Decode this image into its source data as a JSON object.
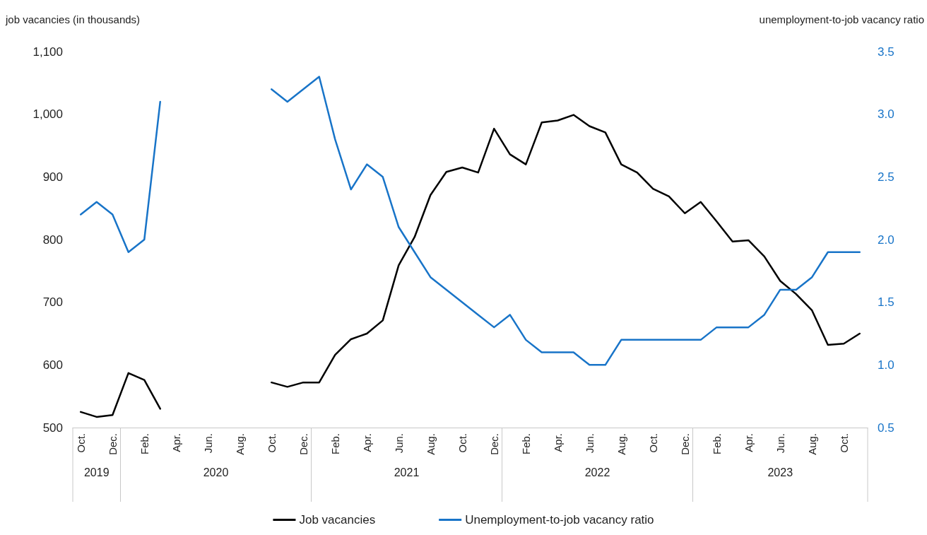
{
  "chart_data": {
    "type": "line",
    "ylabel": "job vacancies (in thousands)",
    "y2label": "unemployment-to-job vacancy ratio",
    "x": [
      "2019-10",
      "2019-11",
      "2019-12",
      "2020-01",
      "2020-02",
      "2020-03",
      "2020-04",
      "2020-05",
      "2020-06",
      "2020-07",
      "2020-08",
      "2020-09",
      "2020-10",
      "2020-11",
      "2020-12",
      "2021-01",
      "2021-02",
      "2021-03",
      "2021-04",
      "2021-05",
      "2021-06",
      "2021-07",
      "2021-08",
      "2021-09",
      "2021-10",
      "2021-11",
      "2021-12",
      "2022-01",
      "2022-02",
      "2022-03",
      "2022-04",
      "2022-05",
      "2022-06",
      "2022-07",
      "2022-08",
      "2022-09",
      "2022-10",
      "2022-11",
      "2022-12",
      "2023-01",
      "2023-02",
      "2023-03",
      "2023-04",
      "2023-05",
      "2023-06",
      "2023-07",
      "2023-08",
      "2023-09",
      "2023-10",
      "2023-11"
    ],
    "xlim": [
      "2019-09-16",
      "2023-11-15"
    ],
    "xticks": [
      {
        "value": "2019-10",
        "label": "Oct."
      },
      {
        "value": "2019-12",
        "label": "Dec."
      },
      {
        "value": "2020-02",
        "label": "Feb."
      },
      {
        "value": "2020-04",
        "label": "Apr."
      },
      {
        "value": "2020-06",
        "label": "Jun."
      },
      {
        "value": "2020-08",
        "label": "Aug."
      },
      {
        "value": "2020-10",
        "label": "Oct."
      },
      {
        "value": "2020-12",
        "label": "Dec."
      },
      {
        "value": "2021-02",
        "label": "Feb."
      },
      {
        "value": "2021-04",
        "label": "Apr."
      },
      {
        "value": "2021-06",
        "label": "Jun."
      },
      {
        "value": "2021-08",
        "label": "Aug."
      },
      {
        "value": "2021-10",
        "label": "Oct."
      },
      {
        "value": "2021-12",
        "label": "Dec."
      },
      {
        "value": "2022-02",
        "label": "Feb."
      },
      {
        "value": "2022-04",
        "label": "Apr."
      },
      {
        "value": "2022-06",
        "label": "Jun."
      },
      {
        "value": "2022-08",
        "label": "Aug."
      },
      {
        "value": "2022-10",
        "label": "Oct."
      },
      {
        "value": "2022-12",
        "label": "Dec."
      },
      {
        "value": "2023-02",
        "label": "Feb."
      },
      {
        "value": "2023-04",
        "label": "Apr."
      },
      {
        "value": "2023-06",
        "label": "Jun."
      },
      {
        "value": "2023-08",
        "label": "Aug."
      },
      {
        "value": "2023-10",
        "label": "Oct."
      }
    ],
    "annotations": [
      "2019",
      "2020",
      "2021",
      "2022",
      "2023"
    ],
    "ylim": [
      500,
      1100
    ],
    "yticks": [
      500,
      600,
      700,
      800,
      900,
      {
        "value": 1000,
        "label": "1,000"
      },
      {
        "value": 1100,
        "label": "1,100"
      }
    ],
    "y2lim": [
      0.5,
      3.5
    ],
    "y2ticks": [
      0.5,
      {
        "value": 1,
        "label": "1.0"
      },
      1.5,
      {
        "value": 2,
        "label": "2.0"
      },
      2.5,
      {
        "value": 3,
        "label": "3.0"
      },
      3.5
    ],
    "grid": false,
    "legend": "bottom",
    "marker": "none",
    "line_style": "solid",
    "series": [
      {
        "name": "Job vacancies",
        "color": "#000000",
        "values": [
          525,
          517,
          520,
          587,
          576,
          530,
          null,
          null,
          null,
          null,
          null,
          null,
          572,
          565,
          572,
          572,
          616,
          641,
          650,
          671,
          759,
          804,
          871,
          908,
          915,
          907,
          977,
          936,
          920,
          987,
          990,
          999,
          981,
          971,
          920,
          907,
          881,
          869,
          842,
          860,
          829,
          797,
          799,
          773,
          734,
          713,
          687,
          632,
          634,
          650
        ]
      },
      {
        "name": "Unemployment-to-job vacancy ratio",
        "color": "#1874c8",
        "axis": "y2",
        "values": [
          2.2,
          2.3,
          2.2,
          1.9,
          2.0,
          3.1,
          null,
          null,
          null,
          null,
          null,
          null,
          3.2,
          3.1,
          3.2,
          3.3,
          2.8,
          2.4,
          2.6,
          2.5,
          2.1,
          1.9,
          1.7,
          1.6,
          1.5,
          1.4,
          1.3,
          1.4,
          1.2,
          1.1,
          1.1,
          1.1,
          1.0,
          1.0,
          1.2,
          1.2,
          1.2,
          1.2,
          1.2,
          1.2,
          1.3,
          1.3,
          1.3,
          1.4,
          1.6,
          1.6,
          1.7,
          1.9,
          1.9,
          1.9
        ]
      }
    ]
  }
}
